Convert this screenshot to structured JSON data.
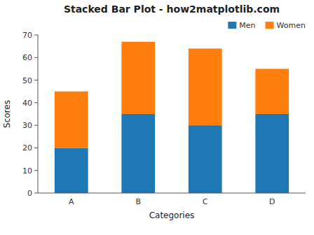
{
  "chart_data": {
    "type": "bar",
    "stacked": true,
    "title": "Stacked Bar Plot - how2matplotlib.com",
    "xlabel": "Categories",
    "ylabel": "Scores",
    "categories": [
      "A",
      "B",
      "C",
      "D"
    ],
    "series": [
      {
        "name": "Men",
        "color": "#1f77b4",
        "values": [
          20,
          35,
          30,
          35
        ]
      },
      {
        "name": "Women",
        "color": "#ff7f0e",
        "values": [
          25,
          32,
          34,
          20
        ]
      }
    ],
    "ylim": [
      0,
      70
    ],
    "yticks": [
      0,
      10,
      20,
      30,
      40,
      50,
      60,
      70
    ],
    "legend": "upper right"
  }
}
